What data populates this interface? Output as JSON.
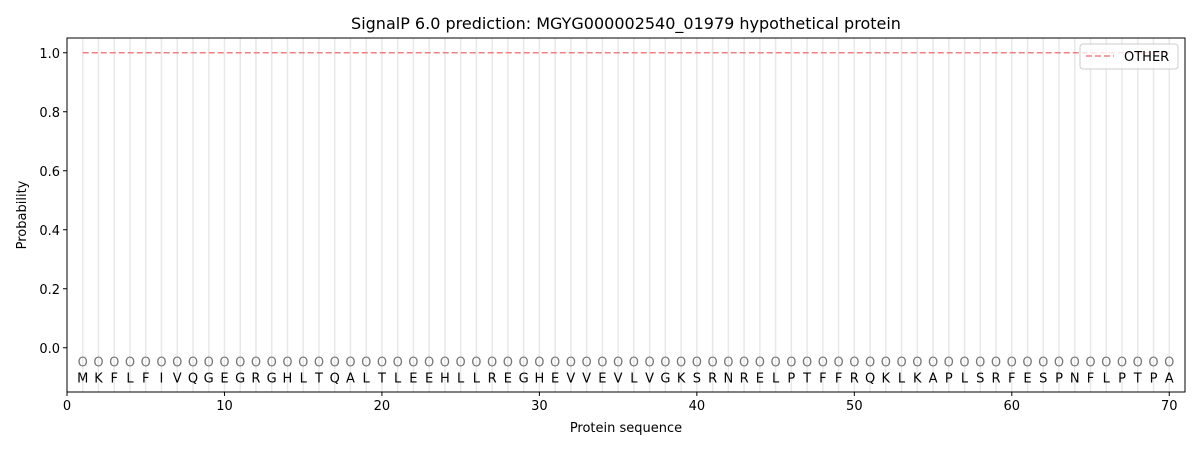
{
  "chart_data": {
    "type": "line",
    "title": "SignalP 6.0 prediction: MGYG000002540_01979 hypothetical protein",
    "xlabel": "Protein sequence",
    "ylabel": "Probability",
    "xlim": [
      0,
      71
    ],
    "ylim": [
      -0.15,
      1.05
    ],
    "xticks": [
      0,
      10,
      20,
      30,
      40,
      50,
      60,
      70
    ],
    "yticks": [
      0.0,
      0.2,
      0.4,
      0.6,
      0.8,
      1.0
    ],
    "ytick_labels": [
      "0.0",
      "0.2",
      "0.4",
      "0.6",
      "0.8",
      "1.0"
    ],
    "sequence": "MKFLFIVQGEGRGHLTQALTLEEHLLREGHEVVEVLVGKSRNRELPTFFRQKLKAPLSRFESPNFLPTPA",
    "predicted_labels": "OOOOOOOOOOOOOOOOOOOOOOOOOOOOOOOOOOOOOOOOOOOOOOOOOOOOOOOOOOOOOOOOOOOOOO",
    "series": [
      {
        "name": "OTHER",
        "color": "#f08080",
        "style": "dashed",
        "x_start": 1,
        "x_end": 70,
        "value": 1.0
      }
    ],
    "legend": {
      "placement": "top-right",
      "entries": [
        "OTHER"
      ]
    },
    "grid": "vertical lines at each residue"
  }
}
